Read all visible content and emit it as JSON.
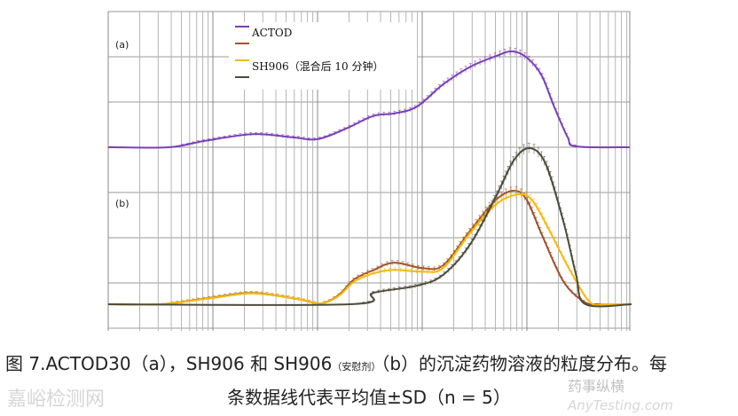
{
  "chart_data": [
    {
      "type": "line",
      "panel_label": "(a)",
      "xscale": "log",
      "grid": true,
      "xlim": [
        0,
        5
      ],
      "ylim": [
        -3.2,
        3
      ],
      "series": [
        {
          "name": "ACTOD",
          "color": "#7b3fb3",
          "x": [
            0,
            0.58,
            0.92,
            1.38,
            1.76,
            2.0,
            2.27,
            2.53,
            2.74,
            2.95,
            3.2,
            3.46,
            3.71,
            3.86,
            4.0,
            4.14,
            4.26,
            4.39,
            4.47,
            4.98
          ],
          "y": [
            0,
            0,
            0.14,
            0.29,
            0.22,
            0.18,
            0.41,
            0.69,
            0.75,
            0.9,
            1.39,
            1.78,
            2.02,
            2.12,
            1.98,
            1.59,
            0.9,
            0.22,
            0.02,
            0
          ]
        }
      ]
    },
    {
      "type": "line",
      "panel_label": "(b)",
      "xscale": "log",
      "grid": true,
      "xlim": [
        0,
        5
      ],
      "series": [
        {
          "name": "",
          "color": "#a0522d",
          "x": [
            0,
            0.5,
            1.0,
            1.38,
            1.8,
            2.03,
            2.2,
            2.35,
            2.53,
            2.73,
            3.0,
            3.2,
            3.45,
            3.7,
            3.88,
            4.0,
            4.15,
            4.35,
            4.55,
            4.7,
            5
          ],
          "y": [
            0,
            0,
            0.15,
            0.25,
            0.12,
            0.02,
            0.2,
            0.55,
            0.75,
            0.92,
            0.8,
            0.86,
            1.6,
            2.3,
            2.51,
            2.3,
            1.5,
            0.5,
            0.05,
            0,
            0
          ]
        },
        {
          "name": "SH906（混合后 10 分钟）",
          "color": "#f5b90f",
          "x": [
            0,
            0.5,
            1.0,
            1.38,
            1.8,
            2.03,
            2.2,
            2.35,
            2.53,
            2.73,
            3.0,
            3.2,
            3.45,
            3.7,
            3.92,
            4.05,
            4.2,
            4.4,
            4.6,
            4.75,
            5
          ],
          "y": [
            0,
            0,
            0.14,
            0.24,
            0.12,
            0.02,
            0.18,
            0.5,
            0.68,
            0.76,
            0.72,
            0.8,
            1.55,
            2.2,
            2.43,
            2.3,
            1.7,
            0.8,
            0.05,
            0,
            0
          ]
        },
        {
          "name": "",
          "color": "#4e4b3a",
          "x": [
            0,
            2.31,
            2.53,
            2.95,
            3.2,
            3.46,
            3.71,
            3.88,
            4.03,
            4.18,
            4.35,
            4.47,
            4.56,
            5
          ],
          "y": [
            0,
            0,
            0.25,
            0.41,
            0.65,
            1.33,
            2.41,
            3.2,
            3.45,
            3.1,
            1.82,
            0.65,
            0,
            0
          ]
        }
      ]
    }
  ],
  "legend": [
    "ACTOD",
    "",
    "SH906（混合后 10 分钟）",
    ""
  ],
  "caption": {
    "line1_a": "图 7.ACTOD30（a），SH906 和 SH906",
    "line1_sub": "（安慰剂）",
    "line1_b": "（b）的沉淀药物溶液的粒度分布。每",
    "line2": "条数据线代表平均值±SD（n = 5）"
  },
  "watermark": [
    "嘉峪检测网",
    "药事纵横",
    "AnyTesting.com"
  ]
}
